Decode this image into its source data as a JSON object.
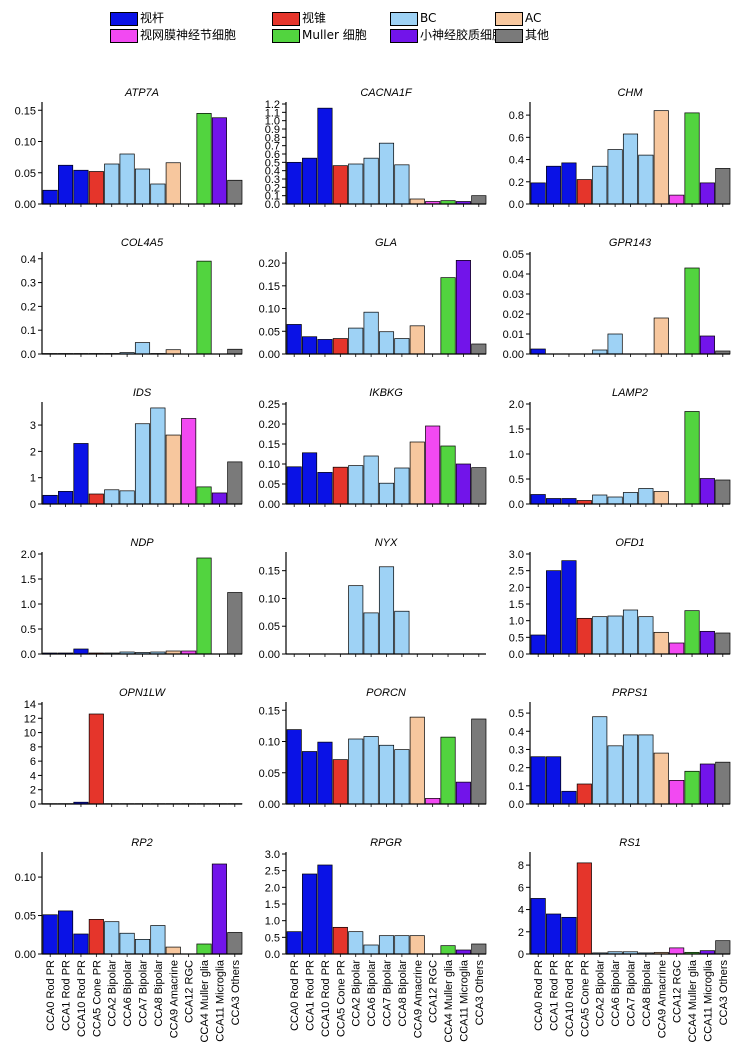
{
  "legend": [
    {
      "label": "视杆",
      "color": "#0a12e6"
    },
    {
      "label": "视锥",
      "color": "#e5352b"
    },
    {
      "label": "BC",
      "color": "#9ed2f5"
    },
    {
      "label": "AC",
      "color": "#f7c79e"
    },
    {
      "label": "视网膜神经节细胞",
      "color": "#f249f2"
    },
    {
      "label": "Muller 细胞",
      "color": "#52d43f"
    },
    {
      "label": "小神经胶质细胞",
      "color": "#7214ea"
    },
    {
      "label": "其他",
      "color": "#7a7a7a"
    }
  ],
  "chart_data": [
    {
      "type": "bar",
      "title": "ATP7A",
      "ylim": [
        0,
        0.16
      ],
      "yticks": [
        "0.00",
        "0.05",
        "0.10",
        "0.15"
      ],
      "yvals": [
        0,
        0.05,
        0.1,
        0.15
      ],
      "values": [
        0.022,
        0.062,
        0.054,
        0.052,
        0.064,
        0.08,
        0.056,
        0.032,
        0.066,
        0,
        0.145,
        0.138,
        0.038
      ]
    },
    {
      "type": "bar",
      "title": "CACNA1F",
      "ylim": [
        0,
        1.2
      ],
      "yticks": [
        "0.0",
        "0.1",
        "0.2",
        "0.3",
        "0.4",
        "0.5",
        "0.6",
        "0.7",
        "0.8",
        "0.9",
        "1.0",
        "1.1",
        "1.2"
      ],
      "yvals": [
        0,
        0.1,
        0.2,
        0.3,
        0.4,
        0.5,
        0.6,
        0.7,
        0.8,
        0.9,
        1.0,
        1.1,
        1.2
      ],
      "values": [
        0.5,
        0.55,
        1.15,
        0.46,
        0.48,
        0.55,
        0.73,
        0.47,
        0.06,
        0.03,
        0.04,
        0.03,
        0.1
      ]
    },
    {
      "type": "bar",
      "title": "CHM",
      "ylim": [
        0,
        0.9
      ],
      "yticks": [
        "0.0",
        "0.2",
        "0.4",
        "0.6",
        "0.8"
      ],
      "yvals": [
        0,
        0.2,
        0.4,
        0.6,
        0.8
      ],
      "values": [
        0.19,
        0.34,
        0.37,
        0.22,
        0.34,
        0.49,
        0.63,
        0.44,
        0.84,
        0.08,
        0.82,
        0.19,
        0.32
      ]
    },
    {
      "type": "bar",
      "title": "COL4A5",
      "ylim": [
        0,
        0.42
      ],
      "yticks": [
        "0.0",
        "0.1",
        "0.2",
        "0.3",
        "0.4"
      ],
      "yvals": [
        0,
        0.1,
        0.2,
        0.3,
        0.4
      ],
      "values": [
        0.002,
        0.002,
        0.002,
        0.002,
        0.002,
        0.006,
        0.048,
        0.002,
        0.018,
        0,
        0.39,
        0,
        0.02
      ]
    },
    {
      "type": "bar",
      "title": "GLA",
      "ylim": [
        0,
        0.22
      ],
      "yticks": [
        "0.00",
        "0.05",
        "0.10",
        "0.15",
        "0.20"
      ],
      "yvals": [
        0,
        0.05,
        0.1,
        0.15,
        0.2
      ],
      "values": [
        0.065,
        0.038,
        0.032,
        0.034,
        0.057,
        0.092,
        0.049,
        0.034,
        0.062,
        0,
        0.168,
        0.206,
        0.022
      ]
    },
    {
      "type": "bar",
      "title": "GPR143",
      "ylim": [
        0,
        0.05
      ],
      "yticks": [
        "0.00",
        "0.01",
        "0.02",
        "0.03",
        "0.04",
        "0.05"
      ],
      "yvals": [
        0,
        0.01,
        0.02,
        0.03,
        0.04,
        0.05
      ],
      "values": [
        0.0025,
        0,
        0,
        0,
        0.002,
        0.01,
        0,
        0,
        0.018,
        0,
        0.043,
        0.009,
        0.0015
      ]
    },
    {
      "type": "bar",
      "title": "IDS",
      "ylim": [
        0,
        3.8
      ],
      "yticks": [
        "0",
        "1",
        "2",
        "3"
      ],
      "yvals": [
        0,
        1,
        2,
        3
      ],
      "values": [
        0.33,
        0.48,
        2.3,
        0.38,
        0.54,
        0.5,
        3.05,
        3.65,
        2.62,
        3.25,
        0.65,
        0.42,
        1.6
      ]
    },
    {
      "type": "bar",
      "title": "IKBKG",
      "ylim": [
        0,
        0.25
      ],
      "yticks": [
        "0.00",
        "0.05",
        "0.10",
        "0.15",
        "0.20",
        "0.25"
      ],
      "yvals": [
        0,
        0.05,
        0.1,
        0.15,
        0.2,
        0.25
      ],
      "values": [
        0.093,
        0.128,
        0.079,
        0.092,
        0.096,
        0.12,
        0.052,
        0.09,
        0.155,
        0.195,
        0.145,
        0.1,
        0.091
      ]
    },
    {
      "type": "bar",
      "title": "LAMP2",
      "ylim": [
        0,
        2.0
      ],
      "yticks": [
        "0.0",
        "0.5",
        "1.0",
        "1.5",
        "2.0"
      ],
      "yvals": [
        0,
        0.5,
        1.0,
        1.5,
        2.0
      ],
      "values": [
        0.19,
        0.11,
        0.11,
        0.07,
        0.18,
        0.14,
        0.23,
        0.31,
        0.25,
        0,
        1.85,
        0.51,
        0.48
      ]
    },
    {
      "type": "bar",
      "title": "NDP",
      "ylim": [
        0,
        2.0
      ],
      "yticks": [
        "0.0",
        "0.5",
        "1.0",
        "1.5",
        "2.0"
      ],
      "yvals": [
        0,
        0.5,
        1.0,
        1.5,
        2.0
      ],
      "values": [
        0.02,
        0.02,
        0.1,
        0.02,
        0.02,
        0.04,
        0.03,
        0.04,
        0.06,
        0.06,
        1.92,
        0,
        1.23
      ]
    },
    {
      "type": "bar",
      "title": "NYX",
      "ylim": [
        0,
        0.18
      ],
      "yticks": [
        "0.00",
        "0.05",
        "0.10",
        "0.15"
      ],
      "yvals": [
        0,
        0.05,
        0.1,
        0.15
      ],
      "values": [
        0,
        0,
        0,
        0,
        0.123,
        0.074,
        0.157,
        0.077,
        0,
        0,
        0,
        0,
        0
      ]
    },
    {
      "type": "bar",
      "title": "OFD1",
      "ylim": [
        0,
        3.0
      ],
      "yticks": [
        "0.0",
        "0.5",
        "1.0",
        "1.5",
        "2.0",
        "2.5",
        "3.0"
      ],
      "yvals": [
        0,
        0.5,
        1.0,
        1.5,
        2.0,
        2.5,
        3.0
      ],
      "values": [
        0.57,
        2.5,
        2.8,
        1.07,
        1.12,
        1.14,
        1.32,
        1.12,
        0.65,
        0.33,
        1.3,
        0.68,
        0.63
      ]
    },
    {
      "type": "bar",
      "title": "OPN1LW",
      "ylim": [
        0,
        14
      ],
      "yticks": [
        "0",
        "2",
        "4",
        "6",
        "8",
        "10",
        "12",
        "14"
      ],
      "yvals": [
        0,
        2,
        4,
        6,
        8,
        10,
        12,
        14
      ],
      "values": [
        0.05,
        0.05,
        0.25,
        12.6,
        0.05,
        0.05,
        0.05,
        0.05,
        0.05,
        0.05,
        0.05,
        0.05,
        0.05
      ]
    },
    {
      "type": "bar",
      "title": "PORCN",
      "ylim": [
        0,
        0.16
      ],
      "yticks": [
        "0.00",
        "0.05",
        "0.10",
        "0.15"
      ],
      "yvals": [
        0,
        0.05,
        0.1,
        0.15
      ],
      "values": [
        0.119,
        0.084,
        0.099,
        0.071,
        0.104,
        0.108,
        0.094,
        0.087,
        0.139,
        0.009,
        0.107,
        0.035,
        0.136
      ]
    },
    {
      "type": "bar",
      "title": "PRPS1",
      "ylim": [
        0,
        0.55
      ],
      "yticks": [
        "0.0",
        "0.1",
        "0.2",
        "0.3",
        "0.4",
        "0.5"
      ],
      "yvals": [
        0,
        0.1,
        0.2,
        0.3,
        0.4,
        0.5
      ],
      "values": [
        0.26,
        0.26,
        0.07,
        0.11,
        0.48,
        0.32,
        0.38,
        0.38,
        0.28,
        0.13,
        0.18,
        0.22,
        0.23
      ]
    },
    {
      "type": "bar",
      "title": "RP2",
      "ylim": [
        0,
        0.13
      ],
      "yticks": [
        "0.00",
        "0.05",
        "0.10"
      ],
      "yvals": [
        0,
        0.05,
        0.1
      ],
      "values": [
        0.051,
        0.056,
        0.026,
        0.045,
        0.042,
        0.027,
        0.019,
        0.037,
        0.009,
        0,
        0.013,
        0.117,
        0.028
      ]
    },
    {
      "type": "bar",
      "title": "RPGR",
      "ylim": [
        0,
        3.0
      ],
      "yticks": [
        "0.0",
        "0.5",
        "1.0",
        "1.5",
        "2.0",
        "2.5",
        "3.0"
      ],
      "yvals": [
        0,
        0.5,
        1.0,
        1.5,
        2.0,
        2.5,
        3.0
      ],
      "values": [
        0.67,
        2.4,
        2.67,
        0.8,
        0.67,
        0.27,
        0.55,
        0.55,
        0.55,
        0,
        0.25,
        0.12,
        0.3
      ]
    },
    {
      "type": "bar",
      "title": "RS1",
      "ylim": [
        0,
        9
      ],
      "yticks": [
        "0",
        "2",
        "4",
        "6",
        "8"
      ],
      "yvals": [
        0,
        2,
        4,
        6,
        8
      ],
      "values": [
        5.0,
        3.6,
        3.3,
        8.2,
        0.1,
        0.2,
        0.2,
        0.1,
        0.15,
        0.55,
        0.15,
        0.3,
        1.2
      ]
    }
  ],
  "categories": [
    "CCA0 Rod PR",
    "CCA1 Rod PR",
    "CCA10 Rod PR",
    "CCA5 Cone PR",
    "CCA2 Bipolar",
    "CCA6 Bipolar",
    "CCA7 Bipolar",
    "CCA8 Bipolar",
    "CCA9 Amacrine",
    "CCA12 RGC",
    "CCA4 Muller glia",
    "CCA11 Microglia",
    "CCA3 Others"
  ],
  "bar_colors": [
    "#0a12e6",
    "#0a12e6",
    "#0a12e6",
    "#e5352b",
    "#9ed2f5",
    "#9ed2f5",
    "#9ed2f5",
    "#9ed2f5",
    "#f7c79e",
    "#f249f2",
    "#52d43f",
    "#7214ea",
    "#7a7a7a"
  ]
}
